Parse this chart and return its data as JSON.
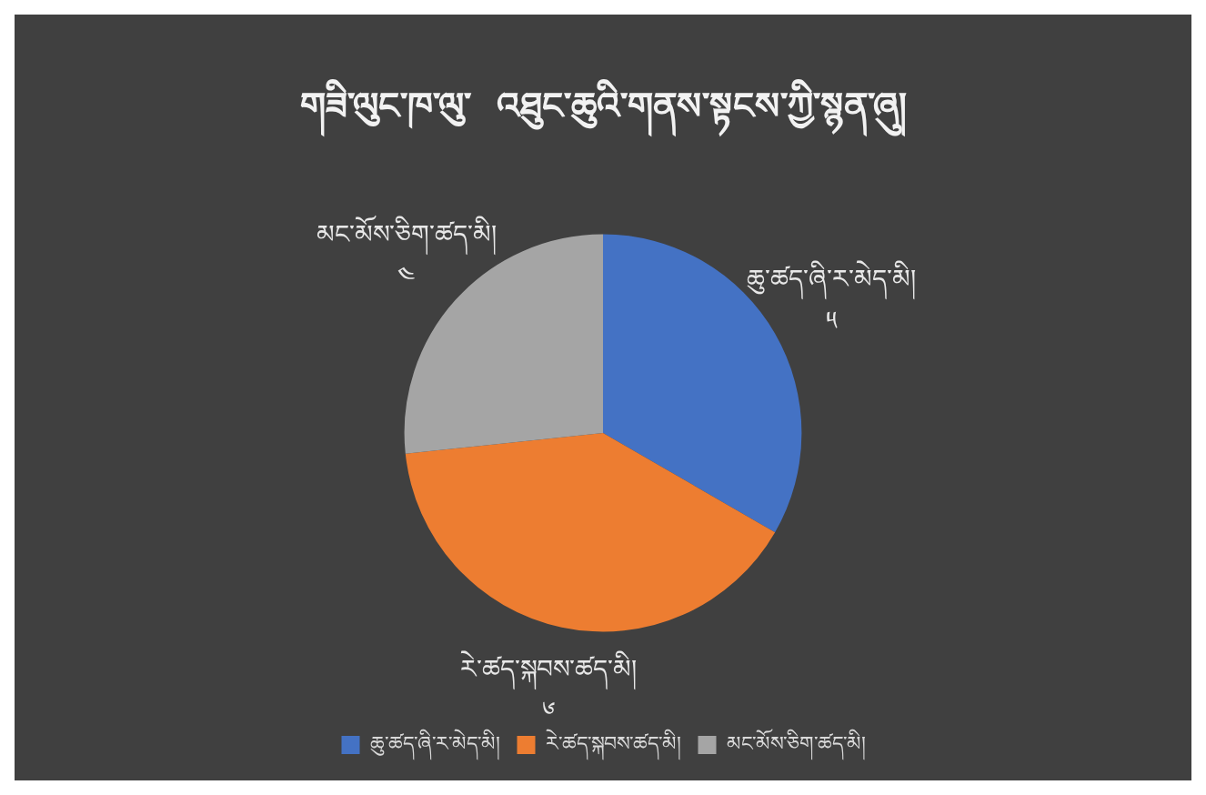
{
  "chart_data": {
    "type": "pie",
    "title": "གཟི་ལུང་ཁ་ལུ་  འཐུང་ཆུའི་གནས་སྟངས་ཀྱི་སྙན་ཞུ།",
    "categories": [
      "ཆུ་ཚད་ཞི་ར་མེད་མི།",
      "རེ་ཚད་སྐབས་ཚད་མི།",
      "མང་མོས་ཅིག་ཚད་མི།"
    ],
    "values": [
      5,
      6,
      4
    ],
    "value_labels": [
      "༥",
      "༦",
      "༤"
    ],
    "colors": [
      "#4472c4",
      "#ed7d31",
      "#a5a5a5"
    ],
    "legend": "bottom"
  }
}
